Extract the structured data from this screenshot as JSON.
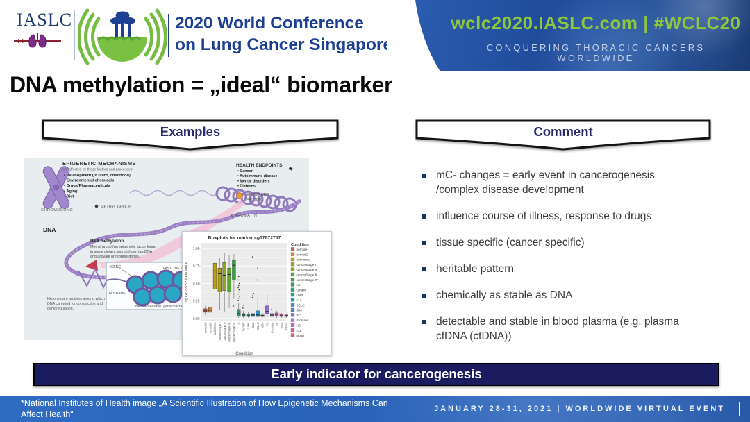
{
  "colors": {
    "accent_green": "#8dc63f",
    "navy": "#1d3f94",
    "panel_blue": "#1d4694",
    "footer_blue": "#2e6cc2",
    "banner_navy": "#1b1b5f"
  },
  "header": {
    "iaslc_logo_text": "IASLC",
    "conference_title_line1": "2020 World Conference",
    "conference_title_line2": "on Lung Cancer Singapore",
    "website": "wclc2020.IASLC.com | #WCLC20",
    "tagline": "CONQUERING THORACIC CANCERS WORLDWIDE"
  },
  "slide": {
    "title": "DNA methylation = „ideal“ biomarker",
    "examples_label": "Examples",
    "comment_label": "Comment",
    "banner": "Early indicator for cancerogenesis"
  },
  "comment": {
    "items": [
      {
        "lines": [
          "mC- changes = early event in cancerogenesis",
          "/complex disease development"
        ]
      },
      {
        "lines": [
          "influence course of illness, response to drugs"
        ]
      },
      {
        "lines": [
          "tissue specific (cancer specific)"
        ]
      },
      {
        "lines": [
          "heritable pattern"
        ]
      },
      {
        "lines": [
          "chemically as stable as DNA"
        ]
      },
      {
        "lines": [
          "detectable and stable in blood plasma (e.g. plasma",
          "cfDNA (ctDNA))"
        ]
      }
    ]
  },
  "illustration": {
    "epigenetic_mechanisms": {
      "title": "EPIGENETIC MECHANISMS",
      "subtitle": "are affected by these factors and processes:",
      "items": [
        "Development (in utero, childhood)",
        "Environmental chemicals",
        "Drugs/Pharmaceuticals",
        "Aging",
        "Diet"
      ]
    },
    "health_endpoints": {
      "title": "HEALTH ENDPOINTS",
      "items": [
        "Cancer",
        "Autoimmune disease",
        "Mental disorders",
        "Diabetes"
      ],
      "asterisk": "*"
    },
    "labels": {
      "chromosome": "CHROMOSOME",
      "chromatin": "CHROMATIN",
      "methyl_group": "METHYL GROUP",
      "epigenetic_factor_line1": "EPIGENETIC",
      "epigenetic_factor_line2": "FACTOR",
      "dna": "DNA",
      "gene": "GENE",
      "histone_tail": "HISTONE TAIL",
      "histone": "HISTONE",
      "dna_inaccessible": "DNA inaccessible, gene inactive"
    },
    "dna_methylation_note": {
      "title": "DNA methylation",
      "lines": [
        "Methyl group (an epigenetic factor found",
        "in some dietary sources) can tag DNA",
        "and activate or repress genes."
      ]
    },
    "histone_note_lines": [
      "Histones are proteins around which",
      "DNA can wind for compaction and",
      "gene regulation."
    ]
  },
  "chart_data": {
    "type": "boxplot",
    "title": "Boxplots for marker cg17872757",
    "xlabel": "Condition",
    "ylabel": "cg17872757 Beta value",
    "ylim": [
      0,
      1
    ],
    "yticks": [
      0.0,
      0.25,
      0.5,
      0.75,
      1.0
    ],
    "legend_title": "Condition",
    "legend_position": "right",
    "grid": true,
    "series": [
      {
        "name": "normalH",
        "color": "#c9605b",
        "low": 0.05,
        "q1": 0.09,
        "median": 0.11,
        "q3": 0.14,
        "high": 0.18,
        "outliers": []
      },
      {
        "name": "normalC",
        "color": "#d08931",
        "low": 0.03,
        "q1": 0.09,
        "median": 0.12,
        "q3": 0.16,
        "high": 0.22,
        "outliers": []
      },
      {
        "name": "adenoma",
        "color": "#c09b12",
        "low": 0.1,
        "q1": 0.42,
        "median": 0.68,
        "q3": 0.79,
        "high": 0.9,
        "outliers": []
      },
      {
        "name": "cancerStage I",
        "color": "#a8a014",
        "low": 0.12,
        "q1": 0.38,
        "median": 0.64,
        "q3": 0.72,
        "high": 0.86,
        "outliers": []
      },
      {
        "name": "cancerStage II",
        "color": "#8fa61c",
        "low": 0.1,
        "q1": 0.4,
        "median": 0.62,
        "q3": 0.8,
        "high": 0.93,
        "outliers": []
      },
      {
        "name": "cancerStage III",
        "color": "#5aa52e",
        "low": 0.15,
        "q1": 0.38,
        "median": 0.63,
        "q3": 0.72,
        "high": 0.9,
        "outliers": []
      },
      {
        "name": "cancerStage IV",
        "color": "#33a146",
        "low": 0.28,
        "q1": 0.55,
        "median": 0.76,
        "q3": 0.83,
        "high": 0.92,
        "outliers": [
          0.18
        ]
      },
      {
        "name": "LC",
        "color": "#2ba05e",
        "low": 0.01,
        "q1": 0.04,
        "median": 0.07,
        "q3": 0.13,
        "high": 0.22,
        "outliers": [
          0.26,
          0.29,
          0.32,
          0.35,
          0.38,
          0.41,
          0.44,
          0.47,
          0.5,
          0.55,
          0.6
        ]
      },
      {
        "name": "Lymph",
        "color": "#28a078",
        "low": 0.01,
        "q1": 0.03,
        "median": 0.05,
        "q3": 0.07,
        "high": 0.11,
        "outliers": [
          0.15,
          0.19
        ]
      },
      {
        "name": "Liver",
        "color": "#1da190",
        "low": 0.01,
        "q1": 0.03,
        "median": 0.04,
        "q3": 0.06,
        "high": 0.09,
        "outliers": []
      },
      {
        "name": "CLL",
        "color": "#16a3a8",
        "low": 0.01,
        "q1": 0.03,
        "median": 0.05,
        "q3": 0.07,
        "high": 0.1,
        "outliers": [
          0.3,
          0.33,
          0.36,
          0.88
        ]
      },
      {
        "name": "SCLC",
        "color": "#2b93c8",
        "low": 0.01,
        "q1": 0.03,
        "median": 0.05,
        "q3": 0.11,
        "high": 0.3,
        "outliers": [
          0.55,
          0.72
        ]
      },
      {
        "name": "Glio",
        "color": "#4b7fd6",
        "low": 0.01,
        "q1": 0.03,
        "median": 0.04,
        "q3": 0.05,
        "high": 0.08,
        "outliers": []
      },
      {
        "name": "PC",
        "color": "#8a6fd8",
        "low": 0.02,
        "q1": 0.07,
        "median": 0.1,
        "q3": 0.18,
        "high": 0.35,
        "outliers": []
      },
      {
        "name": "Prostate",
        "color": "#b76bd4",
        "low": 0.01,
        "q1": 0.03,
        "median": 0.05,
        "q3": 0.07,
        "high": 0.1,
        "outliers": [
          0.13
        ]
      },
      {
        "name": "NS",
        "color": "#d35ec4",
        "low": 0.01,
        "q1": 0.04,
        "median": 0.06,
        "q3": 0.08,
        "high": 0.11,
        "outliers": []
      },
      {
        "name": "ALL",
        "color": "#e0559e",
        "low": 0.01,
        "q1": 0.03,
        "median": 0.04,
        "q3": 0.06,
        "high": 0.08,
        "outliers": []
      },
      {
        "name": "blood",
        "color": "#dd5b78",
        "low": 0.01,
        "q1": 0.03,
        "median": 0.04,
        "q3": 0.05,
        "high": 0.07,
        "outliers": []
      }
    ]
  },
  "footer": {
    "citation_line1": "*National Institutes of Health image „A Scientific Illustration of How Epigenetic Mechanisms Can",
    "citation_line2": "Affect Health“",
    "event_info": "JANUARY 28-31, 2021 | WORLDWIDE VIRTUAL EVENT"
  }
}
